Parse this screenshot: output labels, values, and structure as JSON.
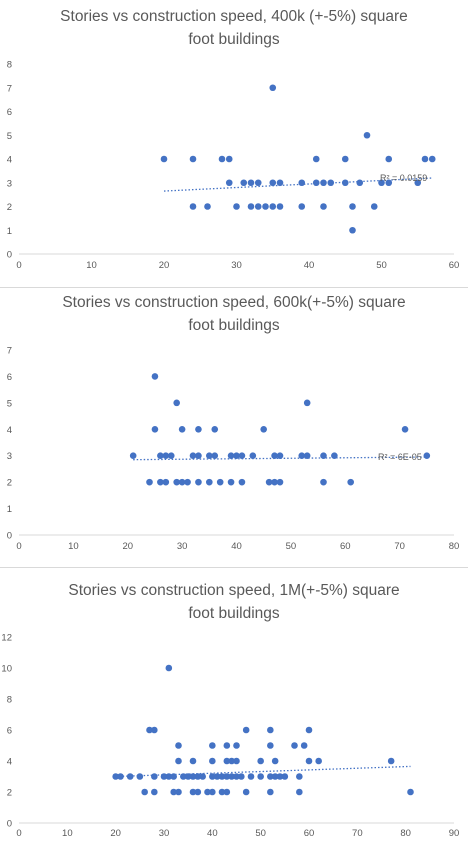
{
  "chart_data": [
    {
      "type": "scatter",
      "title_lines": [
        "Stories vs construction speed, 400k (+-5%) square",
        "foot buildings"
      ],
      "xlabel": "",
      "ylabel": "",
      "xlim": [
        0,
        60
      ],
      "ylim": [
        0,
        8
      ],
      "xticks": [
        "0",
        "10",
        "20",
        "30",
        "40",
        "50",
        "60"
      ],
      "yticks": [
        "0",
        "1",
        "2",
        "3",
        "4",
        "5",
        "6",
        "7",
        "8"
      ],
      "grid": false,
      "marker_color": "#4472C4",
      "trendline": {
        "type": "linear",
        "style": "dotted",
        "x_start": 20,
        "y_start": 2.65,
        "x_end": 57,
        "y_end": 3.2,
        "label": "R² = 0.0159"
      },
      "points": [
        [
          20,
          4
        ],
        [
          24,
          4
        ],
        [
          28,
          4
        ],
        [
          29,
          4
        ],
        [
          41,
          4
        ],
        [
          45,
          4
        ],
        [
          51,
          4
        ],
        [
          56,
          4
        ],
        [
          57,
          4
        ],
        [
          29,
          3
        ],
        [
          31,
          3
        ],
        [
          32,
          3
        ],
        [
          33,
          3
        ],
        [
          35,
          3
        ],
        [
          36,
          3
        ],
        [
          39,
          3
        ],
        [
          41,
          3
        ],
        [
          42,
          3
        ],
        [
          43,
          3
        ],
        [
          45,
          3
        ],
        [
          47,
          3
        ],
        [
          50,
          3
        ],
        [
          51,
          3
        ],
        [
          55,
          3
        ],
        [
          24,
          2
        ],
        [
          26,
          2
        ],
        [
          30,
          2
        ],
        [
          32,
          2
        ],
        [
          33,
          2
        ],
        [
          34,
          2
        ],
        [
          35,
          2
        ],
        [
          36,
          2
        ],
        [
          39,
          2
        ],
        [
          42,
          2
        ],
        [
          46,
          2
        ],
        [
          49,
          2
        ],
        [
          35,
          7
        ],
        [
          48,
          5
        ],
        [
          46,
          1
        ]
      ]
    },
    {
      "type": "scatter",
      "title_lines": [
        "Stories vs construction speed, 600k(+-5%) square",
        "foot buildings"
      ],
      "xlabel": "",
      "ylabel": "",
      "xlim": [
        0,
        80
      ],
      "ylim": [
        0,
        7
      ],
      "xticks": [
        "0",
        "10",
        "20",
        "30",
        "40",
        "50",
        "60",
        "70",
        "80"
      ],
      "yticks": [
        "0",
        "1",
        "2",
        "3",
        "4",
        "5",
        "6",
        "7"
      ],
      "grid": false,
      "marker_color": "#4472C4",
      "trendline": {
        "type": "linear",
        "style": "dotted",
        "x_start": 21,
        "y_start": 2.85,
        "x_end": 75,
        "y_end": 2.95,
        "label": "R² = 6E-05"
      },
      "points": [
        [
          25,
          6
        ],
        [
          29,
          5
        ],
        [
          53,
          5
        ],
        [
          25,
          4
        ],
        [
          30,
          4
        ],
        [
          33,
          4
        ],
        [
          36,
          4
        ],
        [
          45,
          4
        ],
        [
          71,
          4
        ],
        [
          21,
          3
        ],
        [
          26,
          3
        ],
        [
          27,
          3
        ],
        [
          28,
          3
        ],
        [
          32,
          3
        ],
        [
          33,
          3
        ],
        [
          35,
          3
        ],
        [
          36,
          3
        ],
        [
          39,
          3
        ],
        [
          40,
          3
        ],
        [
          41,
          3
        ],
        [
          43,
          3
        ],
        [
          47,
          3
        ],
        [
          48,
          3
        ],
        [
          52,
          3
        ],
        [
          53,
          3
        ],
        [
          56,
          3
        ],
        [
          58,
          3
        ],
        [
          75,
          3
        ],
        [
          24,
          2
        ],
        [
          26,
          2
        ],
        [
          27,
          2
        ],
        [
          29,
          2
        ],
        [
          30,
          2
        ],
        [
          31,
          2
        ],
        [
          33,
          2
        ],
        [
          35,
          2
        ],
        [
          37,
          2
        ],
        [
          39,
          2
        ],
        [
          41,
          2
        ],
        [
          46,
          2
        ],
        [
          47,
          2
        ],
        [
          48,
          2
        ],
        [
          56,
          2
        ],
        [
          61,
          2
        ]
      ]
    },
    {
      "type": "scatter",
      "title_lines": [
        "Stories vs construction speed, 1M(+-5%) square",
        "foot buildings"
      ],
      "xlabel": "",
      "ylabel": "",
      "xlim": [
        0,
        90
      ],
      "ylim": [
        0,
        12
      ],
      "xticks": [
        "0",
        "10",
        "20",
        "30",
        "40",
        "50",
        "60",
        "70",
        "80",
        "90"
      ],
      "yticks": [
        "0",
        "2",
        "4",
        "6",
        "8",
        "10",
        "12"
      ],
      "grid": false,
      "marker_color": "#4472C4",
      "trendline": {
        "type": "linear",
        "style": "dotted",
        "x_start": 20,
        "y_start": 3.0,
        "x_end": 81,
        "y_end": 3.65,
        "label": ""
      },
      "points": [
        [
          31,
          10
        ],
        [
          27,
          6
        ],
        [
          28,
          6
        ],
        [
          47,
          6
        ],
        [
          52,
          6
        ],
        [
          60,
          6
        ],
        [
          33,
          5
        ],
        [
          40,
          5
        ],
        [
          43,
          5
        ],
        [
          45,
          5
        ],
        [
          52,
          5
        ],
        [
          57,
          5
        ],
        [
          59,
          5
        ],
        [
          33,
          4
        ],
        [
          36,
          4
        ],
        [
          40,
          4
        ],
        [
          43,
          4
        ],
        [
          44,
          4
        ],
        [
          45,
          4
        ],
        [
          50,
          4
        ],
        [
          53,
          4
        ],
        [
          60,
          4
        ],
        [
          62,
          4
        ],
        [
          77,
          4
        ],
        [
          20,
          3
        ],
        [
          21,
          3
        ],
        [
          23,
          3
        ],
        [
          25,
          3
        ],
        [
          28,
          3
        ],
        [
          30,
          3
        ],
        [
          31,
          3
        ],
        [
          32,
          3
        ],
        [
          34,
          3
        ],
        [
          35,
          3
        ],
        [
          36,
          3
        ],
        [
          37,
          3
        ],
        [
          38,
          3
        ],
        [
          40,
          3
        ],
        [
          41,
          3
        ],
        [
          42,
          3
        ],
        [
          43,
          3
        ],
        [
          44,
          3
        ],
        [
          45,
          3
        ],
        [
          46,
          3
        ],
        [
          48,
          3
        ],
        [
          50,
          3
        ],
        [
          52,
          3
        ],
        [
          53,
          3
        ],
        [
          54,
          3
        ],
        [
          55,
          3
        ],
        [
          58,
          3
        ],
        [
          26,
          2
        ],
        [
          28,
          2
        ],
        [
          32,
          2
        ],
        [
          33,
          2
        ],
        [
          36,
          2
        ],
        [
          37,
          2
        ],
        [
          39,
          2
        ],
        [
          40,
          2
        ],
        [
          42,
          2
        ],
        [
          43,
          2
        ],
        [
          47,
          2
        ],
        [
          52,
          2
        ],
        [
          58,
          2
        ],
        [
          81,
          2
        ]
      ]
    }
  ]
}
